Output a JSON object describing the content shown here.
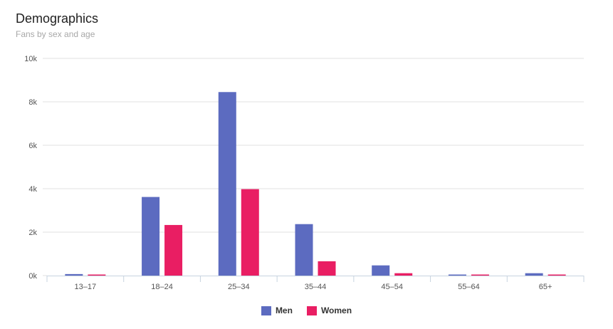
{
  "header": {
    "title": "Demographics",
    "subtitle": "Fans by sex and age"
  },
  "colors": {
    "men": "#5c6bc0",
    "women": "#e91e63",
    "grid": "#e0e0e0",
    "axis": "#c7d3df"
  },
  "chart_data": {
    "type": "bar",
    "categories": [
      "13-17",
      "18-24",
      "25-34",
      "35-44",
      "45-54",
      "55-64",
      "65+"
    ],
    "series": [
      {
        "name": "Men",
        "values": [
          70,
          3620,
          8450,
          2370,
          470,
          30,
          110
        ]
      },
      {
        "name": "Women",
        "values": [
          40,
          2330,
          3980,
          660,
          110,
          10,
          40
        ]
      }
    ],
    "ylim": [
      0,
      10000
    ],
    "yticks": [
      0,
      2000,
      4000,
      6000,
      8000,
      10000
    ],
    "ytick_labels": [
      "0k",
      "2k",
      "4k",
      "6k",
      "8k",
      "10k"
    ],
    "xtick_labels": [
      "13–17",
      "18–24",
      "25–34",
      "35–44",
      "45–54",
      "55–64",
      "65+"
    ],
    "grid": true,
    "legend": "bottom-center"
  }
}
